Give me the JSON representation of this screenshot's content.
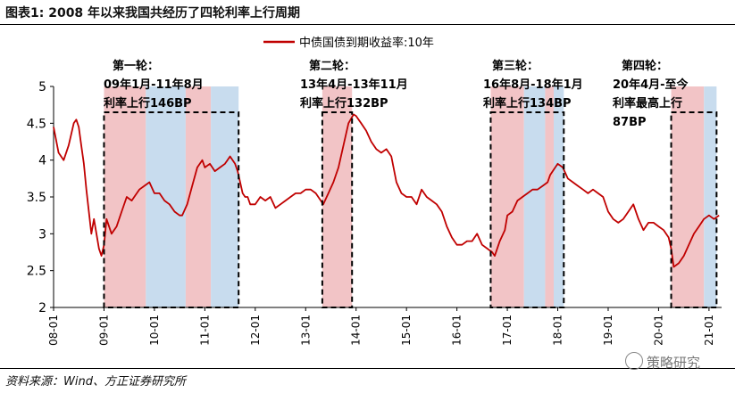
{
  "title": "图表1:   2008 年以来我国共经历了四轮利率上行周期",
  "source": "资料来源：Wind、方正证券研究所",
  "watermark": "策略研究",
  "colors": {
    "line": "#c00000",
    "up": "#f2c4c6",
    "down": "#c8dcee",
    "box": "#000000"
  },
  "chart_data": {
    "type": "line",
    "title": "",
    "xlabel": "",
    "ylabel": "",
    "ylim": [
      2,
      5
    ],
    "yticks": [
      "2",
      "2.5",
      "3",
      "3.5",
      "4",
      "4.5",
      "5"
    ],
    "xlim": [
      2008.0,
      2021.25
    ],
    "xticks": [
      {
        "v": 2008.0,
        "label": "08-01"
      },
      {
        "v": 2009.0,
        "label": "09-01"
      },
      {
        "v": 2010.0,
        "label": "10-01"
      },
      {
        "v": 2011.0,
        "label": "11-01"
      },
      {
        "v": 2012.0,
        "label": "12-01"
      },
      {
        "v": 2013.0,
        "label": "13-01"
      },
      {
        "v": 2014.0,
        "label": "14-01"
      },
      {
        "v": 2015.0,
        "label": "15-01"
      },
      {
        "v": 2016.0,
        "label": "16-01"
      },
      {
        "v": 2017.0,
        "label": "17-01"
      },
      {
        "v": 2018.0,
        "label": "18-01"
      },
      {
        "v": 2019.0,
        "label": "19-01"
      },
      {
        "v": 2020.0,
        "label": "20-01"
      },
      {
        "v": 2021.0,
        "label": "21-01"
      }
    ],
    "legend": {
      "position": "top-center"
    },
    "series": [
      {
        "name": "中债国债到期收益率:10年",
        "x": [
          2008.0,
          2008.1,
          2008.2,
          2008.3,
          2008.4,
          2008.45,
          2008.5,
          2008.55,
          2008.6,
          2008.65,
          2008.7,
          2008.75,
          2008.8,
          2008.85,
          2008.9,
          2008.95,
          2009.0,
          2009.05,
          2009.1,
          2009.15,
          2009.25,
          2009.35,
          2009.45,
          2009.55,
          2009.6,
          2009.7,
          2009.8,
          2009.9,
          2010.0,
          2010.1,
          2010.2,
          2010.3,
          2010.4,
          2010.5,
          2010.55,
          2010.65,
          2010.75,
          2010.85,
          2010.95,
          2011.0,
          2011.1,
          2011.2,
          2011.3,
          2011.4,
          2011.5,
          2011.6,
          2011.65,
          2011.7,
          2011.75,
          2011.8,
          2011.85,
          2011.9,
          2012.0,
          2012.1,
          2012.2,
          2012.3,
          2012.4,
          2012.5,
          2012.6,
          2012.7,
          2012.8,
          2012.9,
          2013.0,
          2013.1,
          2013.2,
          2013.3,
          2013.35,
          2013.45,
          2013.55,
          2013.65,
          2013.75,
          2013.85,
          2013.95,
          2014.0,
          2014.1,
          2014.2,
          2014.3,
          2014.4,
          2014.5,
          2014.6,
          2014.7,
          2014.8,
          2014.9,
          2015.0,
          2015.1,
          2015.2,
          2015.3,
          2015.4,
          2015.5,
          2015.6,
          2015.7,
          2015.8,
          2015.9,
          2016.0,
          2016.1,
          2016.2,
          2016.3,
          2016.4,
          2016.5,
          2016.6,
          2016.7,
          2016.75,
          2016.85,
          2016.95,
          2017.0,
          2017.1,
          2017.2,
          2017.3,
          2017.4,
          2017.5,
          2017.6,
          2017.7,
          2017.8,
          2017.85,
          2017.95,
          2018.0,
          2018.1,
          2018.2,
          2018.3,
          2018.4,
          2018.5,
          2018.6,
          2018.7,
          2018.8,
          2018.9,
          2019.0,
          2019.1,
          2019.2,
          2019.3,
          2019.4,
          2019.5,
          2019.6,
          2019.7,
          2019.8,
          2019.9,
          2020.0,
          2020.1,
          2020.2,
          2020.25,
          2020.3,
          2020.4,
          2020.5,
          2020.6,
          2020.7,
          2020.8,
          2020.9,
          2021.0,
          2021.1,
          2021.2
        ],
        "values": [
          4.45,
          4.1,
          4.0,
          4.2,
          4.5,
          4.55,
          4.45,
          4.2,
          3.95,
          3.6,
          3.3,
          3.0,
          3.2,
          3.0,
          2.8,
          2.7,
          2.85,
          3.2,
          3.1,
          3.0,
          3.1,
          3.3,
          3.5,
          3.45,
          3.5,
          3.6,
          3.65,
          3.7,
          3.55,
          3.55,
          3.45,
          3.4,
          3.3,
          3.25,
          3.25,
          3.4,
          3.65,
          3.9,
          4.0,
          3.9,
          3.95,
          3.85,
          3.9,
          3.95,
          4.05,
          3.95,
          3.85,
          3.7,
          3.55,
          3.5,
          3.5,
          3.4,
          3.4,
          3.5,
          3.45,
          3.5,
          3.35,
          3.4,
          3.45,
          3.5,
          3.55,
          3.55,
          3.6,
          3.6,
          3.55,
          3.45,
          3.4,
          3.55,
          3.7,
          3.9,
          4.2,
          4.5,
          4.62,
          4.6,
          4.5,
          4.4,
          4.25,
          4.15,
          4.1,
          4.15,
          4.05,
          3.7,
          3.55,
          3.5,
          3.5,
          3.4,
          3.6,
          3.5,
          3.45,
          3.4,
          3.3,
          3.1,
          2.95,
          2.85,
          2.85,
          2.9,
          2.9,
          3.0,
          2.85,
          2.8,
          2.75,
          2.7,
          2.9,
          3.05,
          3.25,
          3.3,
          3.45,
          3.5,
          3.55,
          3.6,
          3.6,
          3.65,
          3.7,
          3.8,
          3.9,
          3.95,
          3.9,
          3.75,
          3.7,
          3.65,
          3.6,
          3.55,
          3.6,
          3.55,
          3.5,
          3.3,
          3.2,
          3.15,
          3.2,
          3.3,
          3.4,
          3.2,
          3.05,
          3.15,
          3.15,
          3.1,
          3.05,
          2.95,
          2.8,
          2.55,
          2.6,
          2.7,
          2.85,
          3.0,
          3.1,
          3.2,
          3.25,
          3.2,
          3.25
        ]
      }
    ],
    "cycles": [
      {
        "label1": "第一轮：",
        "label2": "09年1月-11年8月",
        "label3": "利率上行146BP",
        "start": 2009.0,
        "end": 2011.67,
        "bands": [
          [
            2009.0,
            2009.83,
            "up"
          ],
          [
            2009.83,
            2010.62,
            "down"
          ],
          [
            2010.62,
            2011.12,
            "up"
          ],
          [
            2011.12,
            2011.67,
            "down"
          ]
        ]
      },
      {
        "label1": "第二轮：",
        "label2": "13年4月-13年11月",
        "label3": "利率上行132BP",
        "start": 2013.33,
        "end": 2013.92,
        "bands": [
          [
            2013.33,
            2013.92,
            "up"
          ]
        ]
      },
      {
        "label1": "第三轮：",
        "label2": "16年8月-18年1月",
        "label3": "利率上行134BP",
        "start": 2016.67,
        "end": 2018.12,
        "bands": [
          [
            2016.67,
            2017.33,
            "up"
          ],
          [
            2017.33,
            2017.75,
            "down"
          ],
          [
            2017.75,
            2017.92,
            "up"
          ],
          [
            2017.92,
            2018.12,
            "down"
          ]
        ]
      },
      {
        "label1": "第四轮：",
        "label2": "20年4月-至今",
        "label3": "利率最高上行",
        "label4": "87BP",
        "start": 2020.25,
        "end": 2021.15,
        "bands": [
          [
            2020.25,
            2020.9,
            "up"
          ],
          [
            2020.9,
            2021.15,
            "down"
          ]
        ]
      }
    ]
  }
}
